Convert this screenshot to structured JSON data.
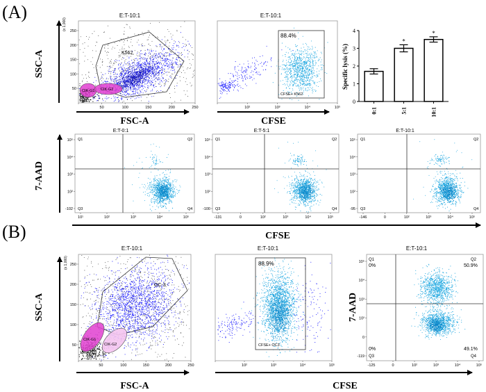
{
  "panels": {
    "A": {
      "label": "(A)",
      "row1": {
        "p1": {
          "title": "E:T-10:1",
          "xlabel": "FSC-A",
          "ylabel": "SSC-A",
          "axis_unit": "(x 1,000)",
          "x_ticks": [
            "50",
            "100",
            "150",
            "200",
            "250"
          ],
          "y_ticks": [
            "50",
            "100",
            "150",
            "200",
            "250"
          ],
          "gates": [
            "K562",
            "CIK-G1",
            "CIK-G2"
          ]
        },
        "p2": {
          "title": "E:T-10:1",
          "xlabel": "CFSE",
          "gate_label": "CFSE+ K562",
          "gate_percent": "88.4%",
          "x_ticks": [
            "10²",
            "10³",
            "10⁴",
            "10⁵"
          ]
        }
      },
      "row2": {
        "ylabel": "7-AAD",
        "xlabel": "CFSE",
        "quadrant_labels": [
          "Q1",
          "Q2",
          "Q3",
          "Q4"
        ],
        "plots": [
          {
            "title": "E:T-0:1",
            "x_ticks": [
              "10¹",
              "10²",
              "10³",
              "10⁴",
              "10⁵"
            ],
            "y_ticks": [
              "10⁵",
              "10⁴",
              "10³",
              "10²",
              "-102"
            ]
          },
          {
            "title": "E:T-5:1",
            "x_ticks": [
              "-131",
              "0",
              "10²",
              "10³",
              "10⁴",
              "10⁵"
            ],
            "y_ticks": [
              "10⁵",
              "10⁴",
              "10³",
              "10²",
              "-100"
            ]
          },
          {
            "title": "E:T-10:1",
            "x_ticks": [
              "-146",
              "0",
              "10²",
              "10³",
              "10⁴",
              "10⁵"
            ],
            "y_ticks": [
              "10⁵",
              "10⁴",
              "10³",
              "10²",
              "-95"
            ]
          }
        ]
      }
    },
    "B": {
      "label": "(B)",
      "p1": {
        "title": "E:T-10:1",
        "xlabel": "FSC-A",
        "ylabel": "SSC-A",
        "axis_unit": "(x 1,000)",
        "x_ticks": [
          "50",
          "100",
          "150",
          "200",
          "250"
        ],
        "y_ticks": [
          "50",
          "100",
          "150",
          "200",
          "250"
        ],
        "gates": [
          "OC-3",
          "CIK-G1",
          "CIK-G2"
        ]
      },
      "p2": {
        "title": "E:T-10:1",
        "xlabel": "CFSE",
        "gate_label": "CFSE+ OC3",
        "gate_percent": "88.9%",
        "x_ticks": [
          "10²",
          "10³",
          "10⁴",
          "10⁵"
        ]
      },
      "p3": {
        "title": "E:T-10:1",
        "ylabel": "7-AAD",
        "quadrant_labels": [
          "Q1",
          "Q2",
          "Q3",
          "Q4"
        ],
        "q_percents": {
          "Q1": "0%",
          "Q2": "50.9%",
          "Q3": "0%",
          "Q4": "49.1%"
        },
        "x_ticks": [
          "-125",
          "0",
          "10²",
          "10³",
          "10⁴",
          "10⁵"
        ],
        "y_ticks": [
          "10⁵",
          "10⁴",
          "10³",
          "10²",
          "0",
          "-119"
        ]
      }
    }
  },
  "chart_data": {
    "type": "bar",
    "title": "",
    "xlabel": "",
    "ylabel": "Specific lysis (%)",
    "categories": [
      "0:1",
      "5:1",
      "10:1"
    ],
    "values": [
      1.7,
      3.0,
      3.5
    ],
    "errors": [
      0.15,
      0.2,
      0.15
    ],
    "significance": [
      "",
      "*",
      "*"
    ],
    "ylim": [
      0,
      4
    ],
    "yticks": [
      "0",
      "1",
      "2",
      "3",
      "4"
    ]
  },
  "colors": {
    "density": "#1a1aff",
    "cfse_dots": "#1ea7e0",
    "gate_pink": "#e040d0",
    "axis": "#000000"
  }
}
